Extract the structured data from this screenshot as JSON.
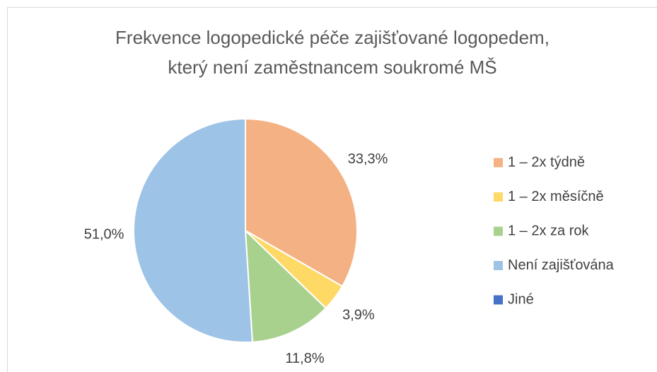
{
  "chart_data": {
    "type": "pie",
    "title": [
      "Frekvence logopedické péče zajišťované logopedem,",
      "který není zaměstnancem soukromé MŠ"
    ],
    "categories": [
      "1 – 2x týdně",
      "1 – 2x měsíčně",
      "1 – 2x za rok",
      "Není zajišťována",
      "Jiné"
    ],
    "values": [
      33.3,
      3.9,
      11.8,
      51.0,
      0
    ],
    "value_labels": [
      "33,3%",
      "3,9%",
      "11,8%",
      "51,0%",
      null
    ],
    "colors": [
      "#f4b183",
      "#ffd966",
      "#a9d18e",
      "#9dc3e6",
      "#4472c4"
    ],
    "legend": "right"
  }
}
